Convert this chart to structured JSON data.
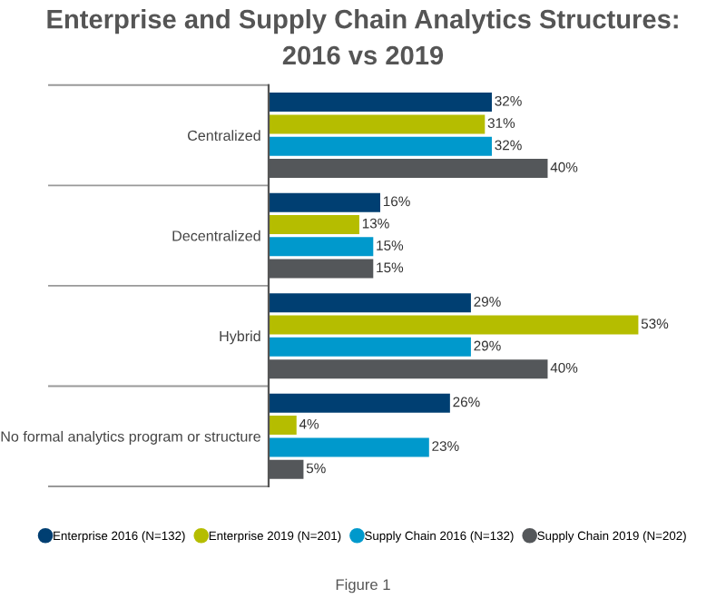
{
  "chart_data": {
    "type": "bar",
    "orientation": "horizontal",
    "title": "Enterprise and Supply Chain Analytics Structures:\n2016 vs 2019",
    "categories": [
      "Centralized",
      "Decentralized",
      "Hybrid",
      "No formal analytics program or structure"
    ],
    "series": [
      {
        "name": "Enterprise 2016 (N=132)",
        "color": "#003f72",
        "values": [
          32,
          16,
          29,
          26
        ],
        "value_labels": [
          "32%",
          "16%",
          "29%",
          "26%"
        ]
      },
      {
        "name": "Enterprise 2019 (N=201)",
        "color": "#b5bd00",
        "values": [
          31,
          13,
          53,
          4
        ],
        "value_labels": [
          "31%",
          "13%",
          "53%",
          "4%"
        ]
      },
      {
        "name": "Supply Chain 2016 (N=132)",
        "color": "#0099cc",
        "values": [
          32,
          15,
          29,
          23
        ],
        "value_labels": [
          "32%",
          "15%",
          "29%",
          "23%"
        ]
      },
      {
        "name": "Supply Chain 2019 (N=202)",
        "color": "#54575a",
        "values": [
          40,
          15,
          40,
          5
        ],
        "value_labels": [
          "40%",
          "15%",
          "40%",
          "5%"
        ]
      }
    ],
    "legend": "bottom",
    "grid": false,
    "annotations": [
      "Figure 1"
    ]
  }
}
